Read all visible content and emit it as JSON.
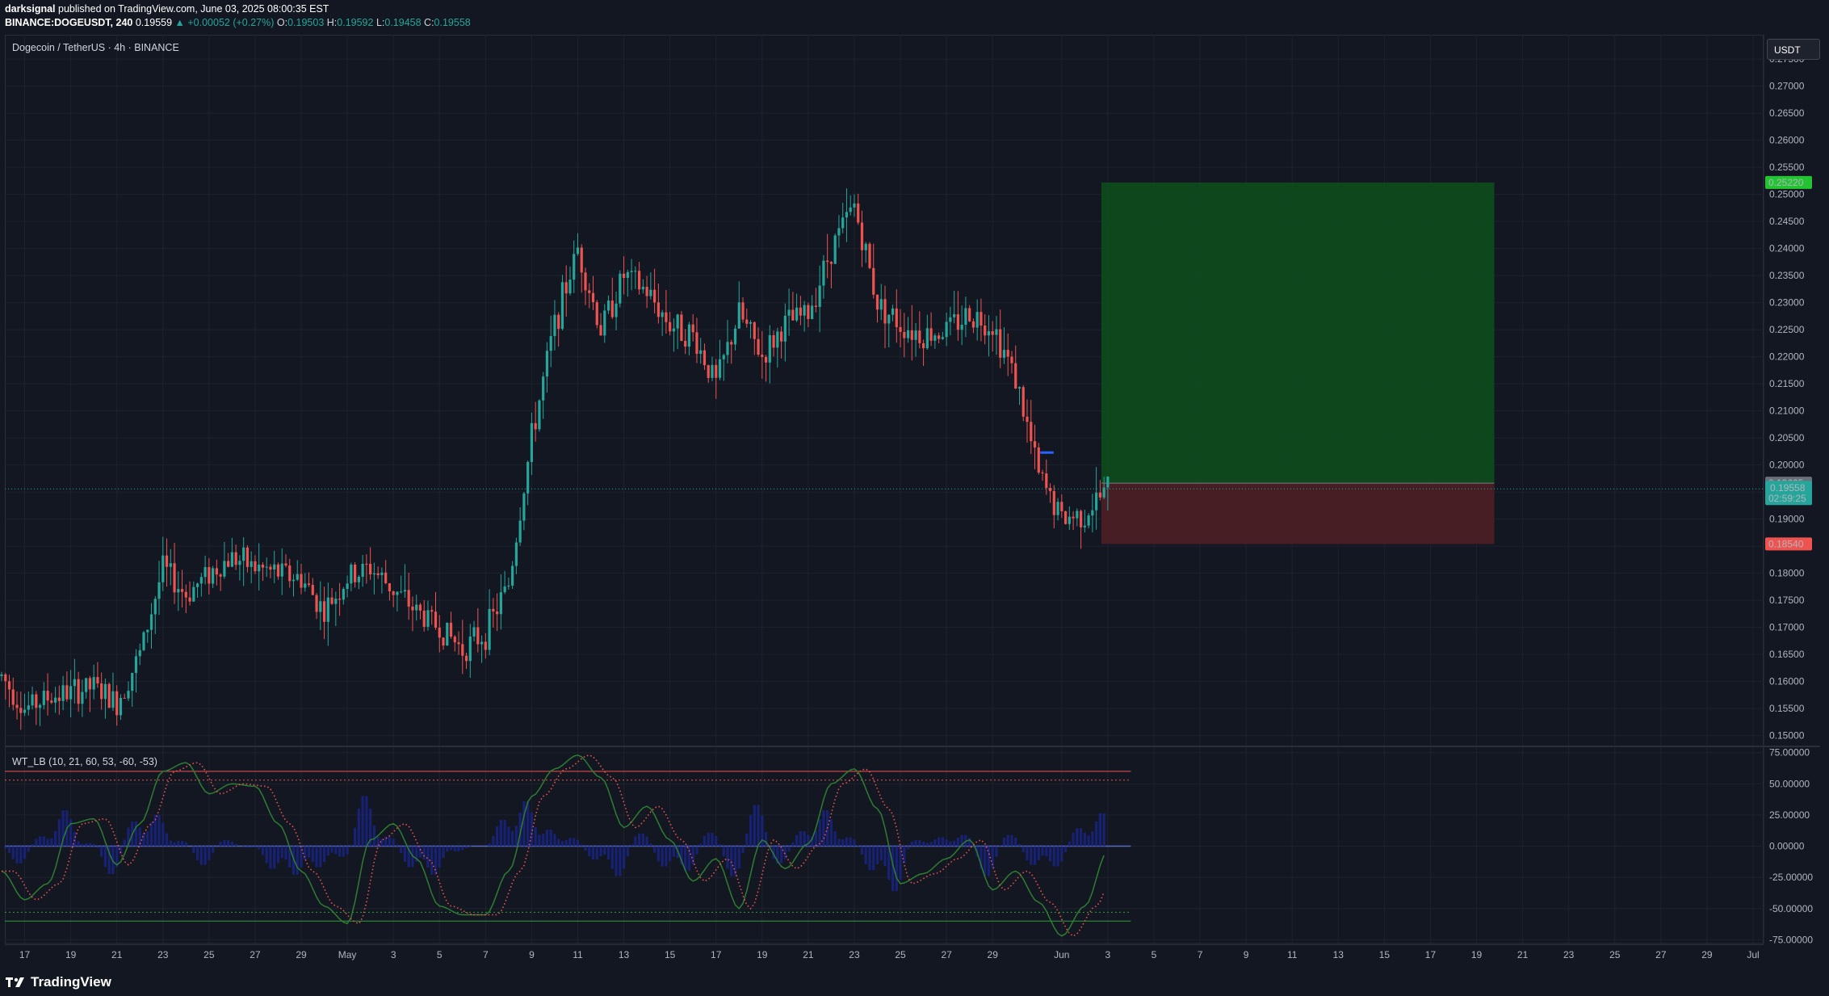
{
  "header": {
    "publisher": "darksignal",
    "published_text": "published on TradingView.com, June 03, 2025 08:00:35 EST",
    "symbol": "BINANCE:DOGEUSDT, 240",
    "last": "0.19559",
    "change": "▲ +0.00052 (+0.27%)",
    "o_label": "O:",
    "o": "0.19503",
    "h_label": "H:",
    "h": "0.19592",
    "l_label": "L:",
    "l": "0.19458",
    "c_label": "C:",
    "c": "0.19558"
  },
  "main_title": "Dogecoin / TetherUS · 4h · BINANCE",
  "indicator_title": "WT_LB (10, 21, 60, 53, -60, -53)",
  "currency_button": "USDT",
  "footer": {
    "brand": "TradingView",
    "logo_icon": "tradingview-logo-icon"
  },
  "colors": {
    "bg": "#131722",
    "grid": "#1e222d",
    "up": "#26a69a",
    "down": "#ef5350",
    "target_zone": "#0f4a1e",
    "stop_zone": "#4a1f24",
    "wt1": "#2e7d32",
    "wt2": "#ef5350",
    "hist": "#1a237e"
  },
  "chart_data": [
    {
      "type": "candlestick",
      "title": "Dogecoin / TetherUS · 4h · BINANCE",
      "ylim": [
        0.148,
        0.2795
      ],
      "y_ticks": [
        "0.15000",
        "0.15500",
        "0.16000",
        "0.16500",
        "0.17000",
        "0.17500",
        "0.18000",
        "0.18500",
        "0.19000",
        "0.19500",
        "0.20000",
        "0.20500",
        "0.21000",
        "0.21500",
        "0.22000",
        "0.22500",
        "0.23000",
        "0.23500",
        "0.24000",
        "0.24500",
        "0.25000",
        "0.25500",
        "0.26000",
        "0.26500",
        "0.27000",
        "0.27500"
      ],
      "x_ticks": [
        "17",
        "19",
        "21",
        "23",
        "25",
        "27",
        "29",
        "May",
        "3",
        "5",
        "7",
        "9",
        "11",
        "13",
        "15",
        "17",
        "19",
        "21",
        "23",
        "25",
        "27",
        "29",
        "Jun",
        "3",
        "5",
        "7",
        "9",
        "11",
        "13",
        "15",
        "17",
        "19",
        "21",
        "23",
        "25",
        "27",
        "29",
        "Jul"
      ],
      "x_range_days": [
        "2025-04-16",
        "2025-07-01"
      ],
      "price_path": [
        {
          "date": "2025-04-16",
          "price": 0.161
        },
        {
          "date": "2025-04-17",
          "price": 0.155
        },
        {
          "date": "2025-04-18",
          "price": 0.157
        },
        {
          "date": "2025-04-19",
          "price": 0.158
        },
        {
          "date": "2025-04-20",
          "price": 0.159
        },
        {
          "date": "2025-04-21",
          "price": 0.156
        },
        {
          "date": "2025-04-22",
          "price": 0.165
        },
        {
          "date": "2025-04-23",
          "price": 0.181
        },
        {
          "date": "2025-04-24",
          "price": 0.176
        },
        {
          "date": "2025-04-25",
          "price": 0.18
        },
        {
          "date": "2025-04-26",
          "price": 0.183
        },
        {
          "date": "2025-04-27",
          "price": 0.181
        },
        {
          "date": "2025-04-28",
          "price": 0.18
        },
        {
          "date": "2025-04-29",
          "price": 0.179
        },
        {
          "date": "2025-04-30",
          "price": 0.173
        },
        {
          "date": "2025-05-01",
          "price": 0.179
        },
        {
          "date": "2025-05-02",
          "price": 0.181
        },
        {
          "date": "2025-05-03",
          "price": 0.177
        },
        {
          "date": "2025-05-04",
          "price": 0.173
        },
        {
          "date": "2025-05-05",
          "price": 0.17
        },
        {
          "date": "2025-05-06",
          "price": 0.166
        },
        {
          "date": "2025-05-07",
          "price": 0.169
        },
        {
          "date": "2025-05-08",
          "price": 0.178
        },
        {
          "date": "2025-05-09",
          "price": 0.205
        },
        {
          "date": "2025-05-10",
          "price": 0.226
        },
        {
          "date": "2025-05-11",
          "price": 0.24
        },
        {
          "date": "2025-05-12",
          "price": 0.225
        },
        {
          "date": "2025-05-13",
          "price": 0.235
        },
        {
          "date": "2025-05-14",
          "price": 0.232
        },
        {
          "date": "2025-05-15",
          "price": 0.226
        },
        {
          "date": "2025-05-16",
          "price": 0.224
        },
        {
          "date": "2025-05-17",
          "price": 0.215
        },
        {
          "date": "2025-05-18",
          "price": 0.228
        },
        {
          "date": "2025-05-19",
          "price": 0.22
        },
        {
          "date": "2025-05-20",
          "price": 0.226
        },
        {
          "date": "2025-05-21",
          "price": 0.228
        },
        {
          "date": "2025-05-22",
          "price": 0.24
        },
        {
          "date": "2025-05-23",
          "price": 0.248
        },
        {
          "date": "2025-05-24",
          "price": 0.23
        },
        {
          "date": "2025-05-25",
          "price": 0.226
        },
        {
          "date": "2025-05-26",
          "price": 0.224
        },
        {
          "date": "2025-05-27",
          "price": 0.225
        },
        {
          "date": "2025-05-28",
          "price": 0.228
        },
        {
          "date": "2025-05-29",
          "price": 0.226
        },
        {
          "date": "2025-05-30",
          "price": 0.216
        },
        {
          "date": "2025-05-31",
          "price": 0.198
        },
        {
          "date": "2025-06-01",
          "price": 0.19
        },
        {
          "date": "2025-06-02",
          "price": 0.191
        },
        {
          "date": "2025-06-03",
          "price": 0.1956
        }
      ],
      "last_price": "0.19558",
      "countdown": "02:59:25",
      "price_labels": [
        {
          "value": "0.25220",
          "kind": "target"
        },
        {
          "value": "0.19665",
          "kind": "entry"
        },
        {
          "value": "0.18540",
          "kind": "stop"
        }
      ],
      "long_position": {
        "start": "2025-06-03",
        "end": "2025-06-19",
        "target": 0.2522,
        "entry": 0.19665,
        "stop": 0.1854
      },
      "marker": {
        "price": 0.2023,
        "start": "2025-05-31",
        "end": "2025-06-01"
      }
    },
    {
      "type": "line",
      "title": "WT_LB (10, 21, 60, 53, -60, -53)",
      "ylim": [
        -78,
        80
      ],
      "y_ticks": [
        "75.00000",
        "50.00000",
        "25.00000",
        "0.00000",
        "-25.00000",
        "-50.00000",
        "-75.00000"
      ],
      "levels": [
        60,
        53,
        -53,
        -60
      ],
      "series": [
        {
          "role": "wt1",
          "points": [
            {
              "date": "2025-04-16",
              "value": -20
            },
            {
              "date": "2025-04-17",
              "value": -43
            },
            {
              "date": "2025-04-18",
              "value": -30
            },
            {
              "date": "2025-04-19",
              "value": 18
            },
            {
              "date": "2025-04-20",
              "value": 22
            },
            {
              "date": "2025-04-21",
              "value": -15
            },
            {
              "date": "2025-04-22",
              "value": 18
            },
            {
              "date": "2025-04-23",
              "value": 60
            },
            {
              "date": "2025-04-24",
              "value": 67
            },
            {
              "date": "2025-04-25",
              "value": 42
            },
            {
              "date": "2025-04-26",
              "value": 50
            },
            {
              "date": "2025-04-27",
              "value": 48
            },
            {
              "date": "2025-04-28",
              "value": 18
            },
            {
              "date": "2025-04-29",
              "value": -20
            },
            {
              "date": "2025-04-30",
              "value": -48
            },
            {
              "date": "2025-05-01",
              "value": -62
            },
            {
              "date": "2025-05-02",
              "value": 5
            },
            {
              "date": "2025-05-03",
              "value": 18
            },
            {
              "date": "2025-05-04",
              "value": -10
            },
            {
              "date": "2025-05-05",
              "value": -48
            },
            {
              "date": "2025-05-06",
              "value": -55
            },
            {
              "date": "2025-05-07",
              "value": -55
            },
            {
              "date": "2025-05-08",
              "value": -20
            },
            {
              "date": "2025-05-09",
              "value": 40
            },
            {
              "date": "2025-05-10",
              "value": 62
            },
            {
              "date": "2025-05-11",
              "value": 73
            },
            {
              "date": "2025-05-12",
              "value": 55
            },
            {
              "date": "2025-05-13",
              "value": 15
            },
            {
              "date": "2025-05-14",
              "value": 32
            },
            {
              "date": "2025-05-15",
              "value": 5
            },
            {
              "date": "2025-05-16",
              "value": -28
            },
            {
              "date": "2025-05-17",
              "value": -10
            },
            {
              "date": "2025-05-18",
              "value": -50
            },
            {
              "date": "2025-05-19",
              "value": 5
            },
            {
              "date": "2025-05-20",
              "value": -18
            },
            {
              "date": "2025-05-21",
              "value": 2
            },
            {
              "date": "2025-05-22",
              "value": 50
            },
            {
              "date": "2025-05-23",
              "value": 62
            },
            {
              "date": "2025-05-24",
              "value": 30
            },
            {
              "date": "2025-05-25",
              "value": -30
            },
            {
              "date": "2025-05-26",
              "value": -22
            },
            {
              "date": "2025-05-27",
              "value": -10
            },
            {
              "date": "2025-05-28",
              "value": 5
            },
            {
              "date": "2025-05-29",
              "value": -35
            },
            {
              "date": "2025-05-30",
              "value": -20
            },
            {
              "date": "2025-05-31",
              "value": -45
            },
            {
              "date": "2025-06-01",
              "value": -72
            },
            {
              "date": "2025-06-02",
              "value": -48
            },
            {
              "date": "2025-06-03",
              "value": -4
            }
          ]
        },
        {
          "role": "wt2",
          "lag_days": 0.5,
          "style": "dotted"
        }
      ]
    }
  ]
}
